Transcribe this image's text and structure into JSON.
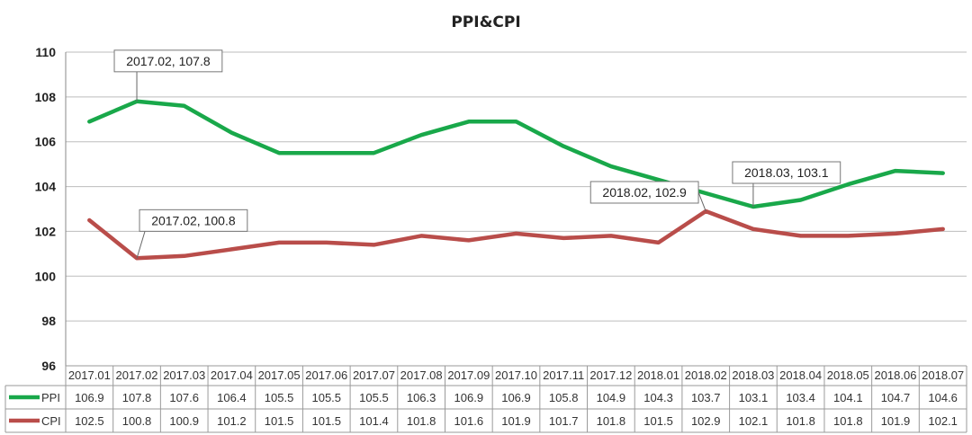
{
  "chart_data": {
    "type": "line",
    "title": "PPI&CPI",
    "categories": [
      "2017.01",
      "2017.02",
      "2017.03",
      "2017.04",
      "2017.05",
      "2017.06",
      "2017.07",
      "2017.08",
      "2017.09",
      "2017.10",
      "2017.11",
      "2017.12",
      "2018.01",
      "2018.02",
      "2018.03",
      "2018.04",
      "2018.05",
      "2018.06",
      "2018.07"
    ],
    "ylim": [
      96,
      110
    ],
    "yticks": [
      "96",
      "98",
      "100",
      "102",
      "104",
      "106",
      "108",
      "110"
    ],
    "grid": true,
    "legend": "data-table",
    "series": [
      {
        "name": "PPI",
        "color": "#19a84a",
        "values": [
          106.9,
          107.8,
          107.6,
          106.4,
          105.5,
          105.5,
          105.5,
          106.3,
          106.9,
          106.9,
          105.8,
          104.9,
          104.3,
          103.7,
          103.1,
          103.4,
          104.1,
          104.7,
          104.6
        ],
        "labels": [
          "106.9",
          "107.8",
          "107.6",
          "106.4",
          "105.5",
          "105.5",
          "105.5",
          "106.3",
          "106.9",
          "106.9",
          "105.8",
          "104.9",
          "104.3",
          "103.7",
          "103.1",
          "103.4",
          "104.1",
          "104.7",
          "104.6"
        ]
      },
      {
        "name": "CPI",
        "color": "#b94d4a",
        "values": [
          102.5,
          100.8,
          100.9,
          101.2,
          101.5,
          101.5,
          101.4,
          101.8,
          101.6,
          101.9,
          101.7,
          101.8,
          101.5,
          102.9,
          102.1,
          101.8,
          101.8,
          101.9,
          102.1
        ],
        "labels": [
          "102.5",
          "100.8",
          "100.9",
          "101.2",
          "101.5",
          "101.5",
          "101.4",
          "101.8",
          "101.6",
          "101.9",
          "101.7",
          "101.8",
          "101.5",
          "102.9",
          "102.1",
          "101.8",
          "101.8",
          "101.9",
          "102.1"
        ]
      }
    ],
    "annotations": [
      {
        "series": 0,
        "index": 1,
        "text": "2017.02, 107.8"
      },
      {
        "series": 1,
        "index": 1,
        "text": "2017.02, 100.8"
      },
      {
        "series": 1,
        "index": 13,
        "text": "2018.02, 102.9"
      },
      {
        "series": 0,
        "index": 14,
        "text": "2018.03, 103.1"
      }
    ]
  }
}
